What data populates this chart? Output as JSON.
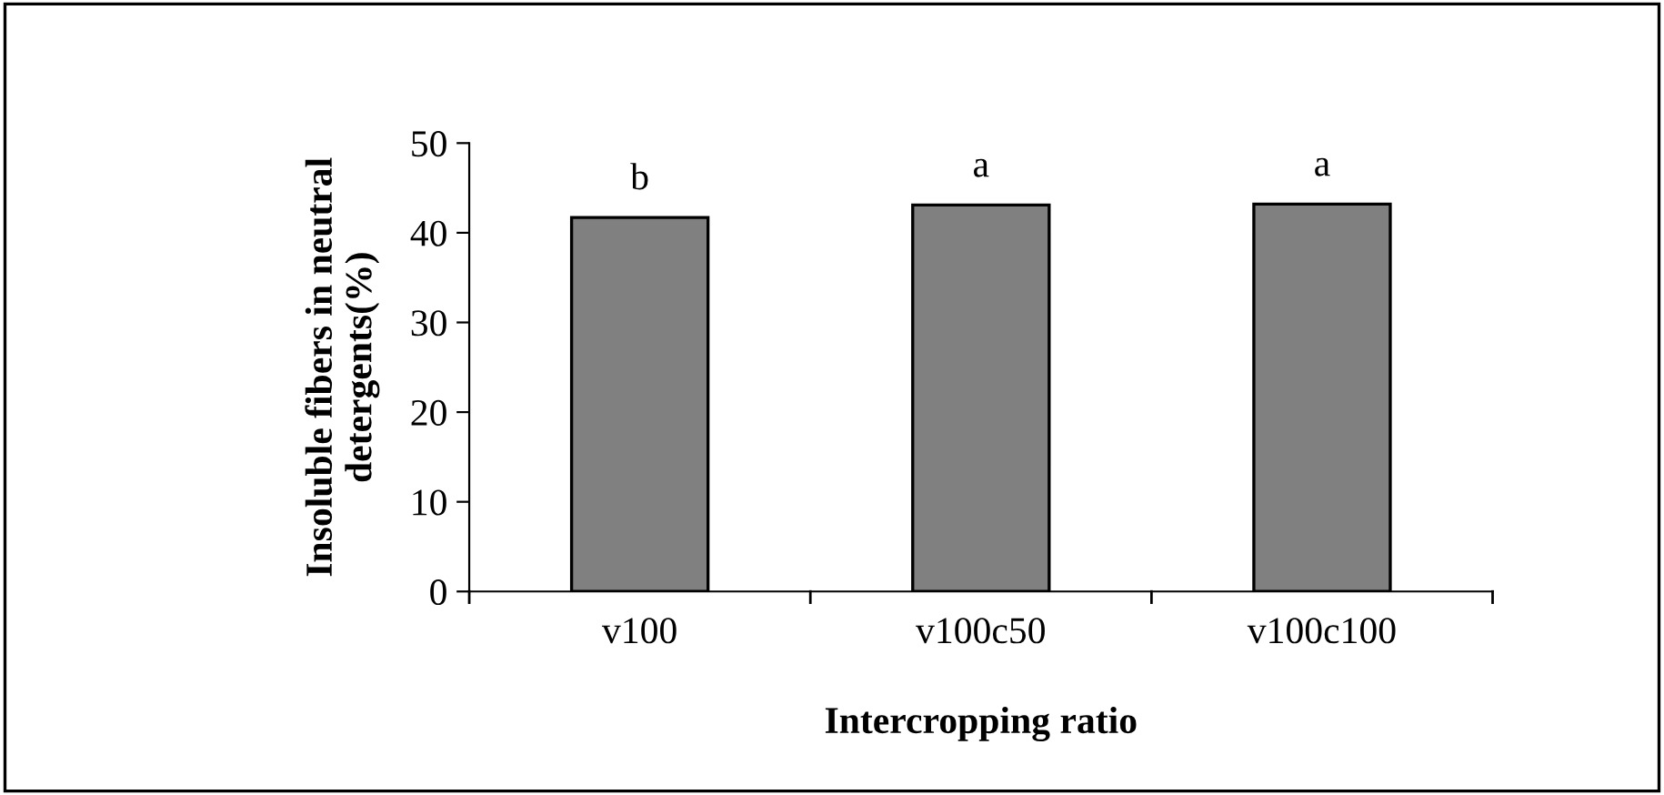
{
  "chart_data": {
    "type": "bar",
    "xlabel": "Intercropping ratio",
    "ylabel": "Insoluble fibers in neutral\ndetergents(%)",
    "categories": [
      "v100",
      "v100c50",
      "v100c100"
    ],
    "values": [
      41.7,
      43.1,
      43.2
    ],
    "color": "#808080",
    "ylim": [
      0,
      50
    ],
    "yticks": [
      0,
      10,
      20,
      30,
      40,
      50
    ],
    "grid": false,
    "annotations": [
      {
        "text": "b",
        "x": "v100",
        "y": 41.7
      },
      {
        "text": "a",
        "x": "v100c50",
        "y": 43.1
      },
      {
        "text": "a",
        "x": "v100c100",
        "y": 43.2
      }
    ]
  }
}
